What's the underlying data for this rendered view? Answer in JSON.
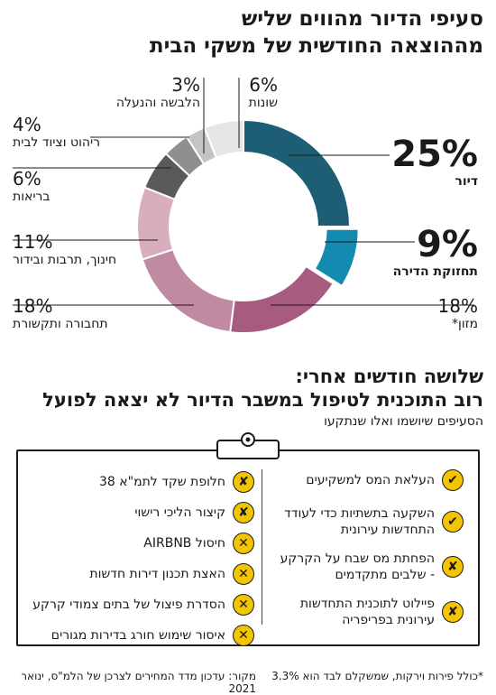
{
  "title": {
    "line1": "סעיפי הדיור מהווים שליש",
    "line2": "מההוצאה החודשית של משקי הבית"
  },
  "chart_data": {
    "type": "pie",
    "variant": "donut",
    "slices": [
      {
        "label": "דיור",
        "value": 25,
        "display": "25%",
        "color": "#1d5e75"
      },
      {
        "label": "תחזוקת הדירה",
        "value": 9,
        "display": "9%",
        "color": "#138bb0"
      },
      {
        "label": "מזון*",
        "value": 18,
        "display": "18%",
        "color": "#a65b7f"
      },
      {
        "label": "תחבורה ותקשורת",
        "value": 18,
        "display": "18%",
        "color": "#c08aa3"
      },
      {
        "label": "חינוך, תרבות ובידור",
        "value": 11,
        "display": "11%",
        "color": "#d6aebd"
      },
      {
        "label": "בריאות",
        "value": 6,
        "display": "6%",
        "color": "#5a5a5a"
      },
      {
        "label": "ריהוט וציוד לבית",
        "value": 4,
        "display": "4%",
        "color": "#8f8f8f"
      },
      {
        "label": "הלבשה והנעלה",
        "value": 3,
        "display": "3%",
        "color": "#c4c4c4"
      },
      {
        "label": "שונות",
        "value": 6,
        "display": "6%",
        "color": "#e6e6e6"
      }
    ]
  },
  "section2": {
    "heading1": "שלושה חודשים אחרי:",
    "heading2": "רוב התוכנית לטיפול במשבר הדיור לא יצאה לפועל",
    "subheading": "הסעיפים שיושמו ואלו שנתקעו"
  },
  "right_items": [
    {
      "text": "העלאת המס למשקיעים",
      "status": "done",
      "glyph": "✔"
    },
    {
      "text": "השקעה בתשתיות כדי לעודד התחדשות עירונית",
      "status": "done",
      "glyph": "✔"
    },
    {
      "text": "הפחתת מס שבח על הקרקע - שלבים מתקדמים",
      "status": "partial",
      "glyph": "✘"
    },
    {
      "text": "פיילוט לתוכנית התחדשות עירונית בפריפריה",
      "status": "partial",
      "glyph": "✘"
    }
  ],
  "left_items": [
    {
      "text": "חלופת שקד לתמ\"א 38",
      "status": "partial",
      "glyph": "✘"
    },
    {
      "text": "קיצור הליכי רישוי",
      "status": "partial",
      "glyph": "✘"
    },
    {
      "text": "חיסול AIRBNB",
      "status": "failed",
      "glyph": "✕"
    },
    {
      "text": "האצת תכנון דירות חדשות",
      "status": "failed",
      "glyph": "✕"
    },
    {
      "text": "הסדרת פיצול של בתים צמודי קרקע",
      "status": "failed",
      "glyph": "✕"
    },
    {
      "text": "איסור שימוש חורג בדירות מגורים",
      "status": "failed",
      "glyph": "✕"
    }
  ],
  "colors": {
    "done": "#f2c500",
    "partial": "#f2c500",
    "failed": "#f2c500"
  },
  "footer": {
    "note": "*כולל פירות וירקות, שמשקלם לבד הוא 3.3%",
    "source": "מקור: עדכון מדד המחירים לצרכן של הלמ\"ס, ינואר 2021"
  }
}
